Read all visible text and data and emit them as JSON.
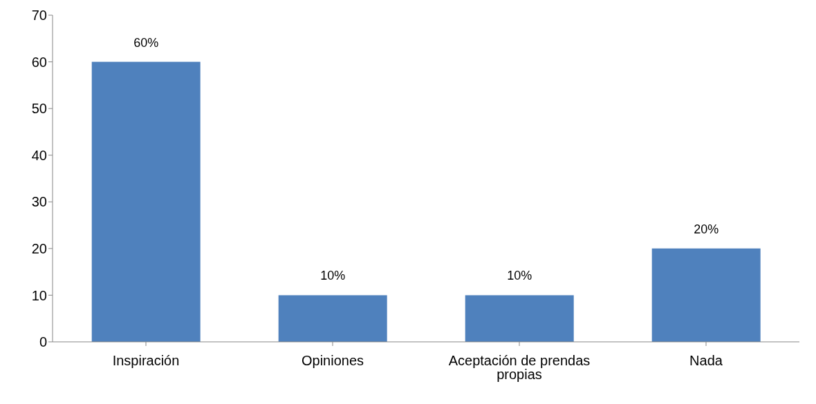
{
  "chart_data": {
    "type": "bar",
    "categories": [
      "Inspiración",
      "Opiniones",
      "Aceptación de prendas propias",
      "Nada"
    ],
    "values": [
      60,
      10,
      10,
      20
    ],
    "color": "#4f81bd",
    "value_labels": [
      "60%",
      "10%",
      "10%",
      "20%"
    ],
    "ylim": [
      0,
      70
    ],
    "yticks": [
      0,
      10,
      20,
      30,
      40,
      50,
      60,
      70
    ],
    "grid": false
  }
}
